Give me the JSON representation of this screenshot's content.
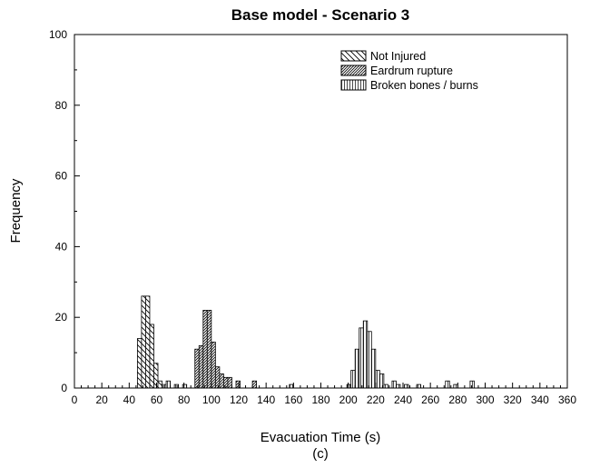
{
  "chart_data": {
    "type": "bar",
    "title": "Base model - Scenario 3",
    "xlabel": "Evacuation Time (s)",
    "ylabel": "Frequency",
    "caption": "(c)",
    "xlim": [
      0,
      360
    ],
    "ylim": [
      0,
      100
    ],
    "xticks": [
      0,
      20,
      40,
      60,
      80,
      100,
      120,
      140,
      160,
      180,
      200,
      220,
      240,
      260,
      280,
      300,
      320,
      340,
      360
    ],
    "yticks": [
      0,
      20,
      40,
      60,
      80,
      100
    ],
    "bin_width": 3,
    "grid": false,
    "legend_position": "top-right",
    "series": [
      {
        "name": "Not Injured",
        "pattern": "back-diagonal",
        "bins": [
          {
            "x": 46,
            "y": 14
          },
          {
            "x": 49,
            "y": 26
          },
          {
            "x": 52,
            "y": 26
          },
          {
            "x": 55,
            "y": 18
          },
          {
            "x": 58,
            "y": 7
          },
          {
            "x": 61,
            "y": 2
          }
        ]
      },
      {
        "name": "Eardrum rupture",
        "pattern": "dense-forward-diagonal",
        "bins": [
          {
            "x": 88,
            "y": 11
          },
          {
            "x": 91,
            "y": 12
          },
          {
            "x": 94,
            "y": 22
          },
          {
            "x": 97,
            "y": 22
          },
          {
            "x": 100,
            "y": 13
          },
          {
            "x": 103,
            "y": 6
          },
          {
            "x": 106,
            "y": 4
          },
          {
            "x": 109,
            "y": 3
          },
          {
            "x": 112,
            "y": 3
          },
          {
            "x": 118,
            "y": 2
          },
          {
            "x": 130,
            "y": 2
          }
        ]
      },
      {
        "name": "Broken bones / burns",
        "pattern": "vertical",
        "bins": [
          {
            "x": 64,
            "y": 1
          },
          {
            "x": 67,
            "y": 2
          },
          {
            "x": 73,
            "y": 1
          },
          {
            "x": 79,
            "y": 1
          },
          {
            "x": 157,
            "y": 1
          },
          {
            "x": 199,
            "y": 1
          },
          {
            "x": 202,
            "y": 5
          },
          {
            "x": 205,
            "y": 11
          },
          {
            "x": 208,
            "y": 17
          },
          {
            "x": 211,
            "y": 19
          },
          {
            "x": 214,
            "y": 16
          },
          {
            "x": 217,
            "y": 11
          },
          {
            "x": 220,
            "y": 5
          },
          {
            "x": 223,
            "y": 4
          },
          {
            "x": 226,
            "y": 1
          },
          {
            "x": 232,
            "y": 2
          },
          {
            "x": 235,
            "y": 1
          },
          {
            "x": 241,
            "y": 1
          },
          {
            "x": 250,
            "y": 1
          },
          {
            "x": 271,
            "y": 2
          },
          {
            "x": 277,
            "y": 1
          },
          {
            "x": 289,
            "y": 2
          }
        ]
      }
    ]
  }
}
